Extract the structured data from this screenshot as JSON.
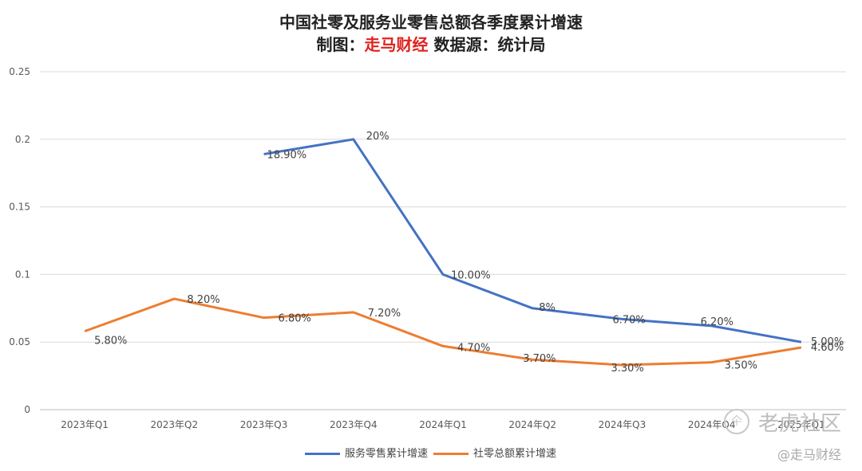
{
  "title": {
    "line1": "中国社零及服务业零售总额各季度累计增速",
    "line2_prefix": "制图：",
    "line2_brand": "走马财经",
    "line2_suffix": " 数据源：统计局"
  },
  "chart_data": {
    "type": "line",
    "categories": [
      "2023年Q1",
      "2023年Q2",
      "2023年Q3",
      "2023年Q4",
      "2024年Q1",
      "2024年Q2",
      "2024年Q3",
      "2024年Q4",
      "2025年Q1"
    ],
    "ylim": [
      0,
      0.25
    ],
    "yticks": [
      "0",
      "0.05",
      "0.1",
      "0.15",
      "0.2",
      "0.25"
    ],
    "grid": true,
    "legend_position": "bottom",
    "series": [
      {
        "name": "服务零售累计增速",
        "color": "#4472c4",
        "values": [
          null,
          null,
          0.189,
          0.2,
          0.1,
          0.075,
          0.067,
          0.062,
          0.05
        ],
        "labels": [
          "",
          "",
          "18.90%",
          "20%",
          "10.00%",
          "8%",
          "6.70%",
          "6.20%",
          "5.00%"
        ]
      },
      {
        "name": "社零总额累计增速",
        "color": "#ed7d31",
        "values": [
          0.058,
          0.082,
          0.068,
          0.072,
          0.047,
          0.037,
          0.033,
          0.035,
          0.046
        ],
        "labels": [
          "5.80%",
          "8.20%",
          "6.80%",
          "7.20%",
          "4.70%",
          "3.70%",
          "3.30%",
          "3.50%",
          "4.60%"
        ]
      }
    ]
  },
  "watermarks": {
    "top": "老虎社区",
    "bottom": "@走马财经",
    "circle": "仐"
  }
}
